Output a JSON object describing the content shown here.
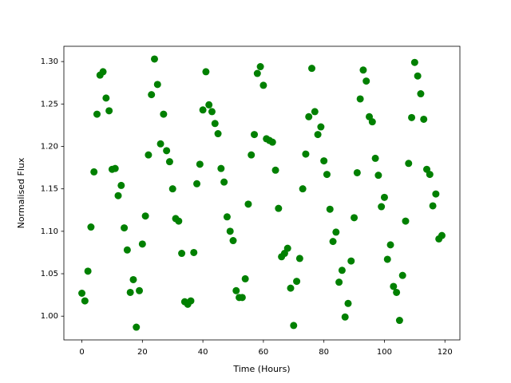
{
  "chart_data": {
    "type": "scatter",
    "x_label": "Time (Hours)",
    "y_label": "Normalised Flux",
    "color": "#008000",
    "x": [
      0,
      1,
      2,
      3,
      4,
      5,
      6,
      7,
      8,
      9,
      10,
      11,
      12,
      13,
      14,
      15,
      16,
      17,
      18,
      19,
      20,
      21,
      22,
      23,
      24,
      25,
      26,
      27,
      28,
      29,
      30,
      31,
      32,
      33,
      34,
      35,
      36,
      37,
      38,
      39,
      40,
      41,
      42,
      43,
      44,
      45,
      46,
      47,
      48,
      49,
      50,
      51,
      52,
      53,
      54,
      55,
      56,
      57,
      58,
      59,
      60,
      61,
      62,
      63,
      64,
      65,
      66,
      67,
      68,
      69,
      70,
      71,
      72,
      73,
      74,
      75,
      76,
      77,
      78,
      79,
      80,
      81,
      82,
      83,
      84,
      85,
      86,
      87,
      88,
      89,
      90,
      91,
      92,
      93,
      94,
      95,
      96,
      97,
      98,
      99,
      100,
      101,
      102,
      103,
      104,
      105,
      106,
      107,
      108,
      109,
      110,
      111,
      112,
      113,
      114,
      115,
      116,
      117,
      118,
      119
    ],
    "y": [
      1.027,
      1.018,
      1.053,
      1.105,
      1.17,
      1.238,
      1.284,
      1.288,
      1.257,
      1.242,
      1.173,
      1.174,
      1.142,
      1.154,
      1.104,
      1.078,
      1.028,
      1.043,
      0.987,
      1.03,
      1.085,
      1.118,
      1.19,
      1.261,
      1.303,
      1.273,
      1.203,
      1.238,
      1.195,
      1.182,
      1.15,
      1.115,
      1.112,
      1.074,
      1.017,
      1.014,
      1.018,
      1.075,
      1.156,
      1.179,
      1.243,
      1.288,
      1.249,
      1.241,
      1.227,
      1.215,
      1.174,
      1.158,
      1.117,
      1.1,
      1.089,
      1.03,
      1.022,
      1.022,
      1.044,
      1.132,
      1.19,
      1.214,
      1.286,
      1.294,
      1.272,
      1.209,
      1.207,
      1.205,
      1.172,
      1.127,
      1.07,
      1.074,
      1.08,
      1.033,
      0.989,
      1.041,
      1.068,
      1.15,
      1.191,
      1.235,
      1.292,
      1.241,
      1.214,
      1.223,
      1.183,
      1.167,
      1.126,
      1.088,
      1.099,
      1.04,
      1.054,
      0.999,
      1.015,
      1.065,
      1.116,
      1.169,
      1.256,
      1.29,
      1.277,
      1.235,
      1.229,
      1.186,
      1.166,
      1.129,
      1.14,
      1.067,
      1.084,
      1.035,
      1.028,
      0.995,
      1.048,
      1.112,
      1.18,
      1.234,
      1.299,
      1.283,
      1.262,
      1.232,
      1.173,
      1.167,
      1.13,
      1.144,
      1.091,
      1.095
    ],
    "xlim": [
      -5.95,
      124.95
    ],
    "ylim": [
      0.972,
      1.318
    ],
    "xticks": [
      0,
      20,
      40,
      60,
      80,
      100,
      120
    ],
    "yticks": [
      {
        "value": 1.0,
        "label": "1.00"
      },
      1.05,
      {
        "value": 1.1,
        "label": "1.10"
      },
      1.15,
      {
        "value": 1.2,
        "label": "1.20"
      },
      1.25,
      {
        "value": 1.3,
        "label": "1.30"
      }
    ]
  }
}
